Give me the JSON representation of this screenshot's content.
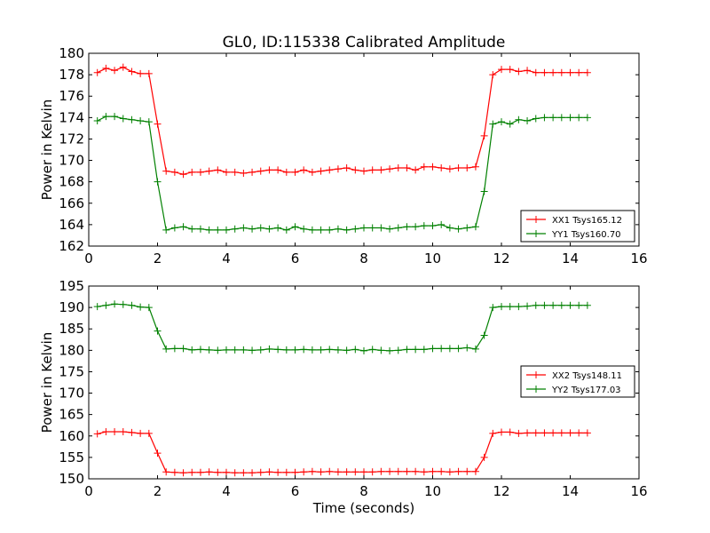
{
  "figure": {
    "title": "GL0, ID:115338 Calibrated Amplitude"
  },
  "chart_data": [
    {
      "type": "line",
      "title": "GL0, ID:115338 Calibrated Amplitude",
      "xlabel": "",
      "ylabel": "Power in Kelvin",
      "xlim": [
        0,
        16
      ],
      "ylim": [
        162,
        180
      ],
      "xticks": [
        0,
        2,
        4,
        6,
        8,
        10,
        12,
        14,
        16
      ],
      "yticks": [
        162,
        164,
        166,
        168,
        170,
        172,
        174,
        176,
        178,
        180
      ],
      "grid": false,
      "legend_position": "lower-right",
      "x": [
        0.25,
        0.5,
        0.75,
        1.0,
        1.25,
        1.5,
        1.75,
        2.0,
        2.25,
        2.5,
        2.75,
        3.0,
        3.25,
        3.5,
        3.75,
        4.0,
        4.25,
        4.5,
        4.75,
        5.0,
        5.25,
        5.5,
        5.75,
        6.0,
        6.25,
        6.5,
        6.75,
        7.0,
        7.25,
        7.5,
        7.75,
        8.0,
        8.25,
        8.5,
        8.75,
        9.0,
        9.25,
        9.5,
        9.75,
        10.0,
        10.25,
        10.5,
        10.75,
        11.0,
        11.25,
        11.5,
        11.75,
        12.0,
        12.25,
        12.5,
        12.75,
        13.0,
        13.25,
        13.5,
        13.75,
        14.0,
        14.25,
        14.5
      ],
      "series": [
        {
          "name": "XX1 Tsys165.12",
          "color": "#ff0000",
          "values": [
            178.2,
            178.6,
            178.4,
            178.7,
            178.3,
            178.1,
            178.1,
            173.4,
            169.0,
            168.9,
            168.7,
            168.9,
            168.9,
            169.0,
            169.1,
            168.9,
            168.9,
            168.8,
            168.9,
            169.0,
            169.1,
            169.1,
            168.9,
            168.9,
            169.1,
            168.9,
            169.0,
            169.1,
            169.2,
            169.3,
            169.1,
            169.0,
            169.1,
            169.1,
            169.2,
            169.3,
            169.3,
            169.1,
            169.4,
            169.4,
            169.3,
            169.2,
            169.3,
            169.3,
            169.4,
            172.3,
            178.0,
            178.5,
            178.5,
            178.3,
            178.4,
            178.2,
            178.2,
            178.2,
            178.2,
            178.2,
            178.2,
            178.2
          ]
        },
        {
          "name": "YY1 Tsys160.70",
          "color": "#008000",
          "values": [
            173.7,
            174.1,
            174.1,
            173.9,
            173.8,
            173.7,
            173.6,
            168.0,
            163.5,
            163.7,
            163.8,
            163.6,
            163.6,
            163.5,
            163.5,
            163.5,
            163.6,
            163.7,
            163.6,
            163.7,
            163.6,
            163.7,
            163.5,
            163.8,
            163.6,
            163.5,
            163.5,
            163.5,
            163.6,
            163.5,
            163.6,
            163.7,
            163.7,
            163.7,
            163.6,
            163.7,
            163.8,
            163.8,
            163.9,
            163.9,
            164.0,
            163.7,
            163.6,
            163.7,
            163.8,
            167.1,
            173.4,
            173.6,
            173.4,
            173.8,
            173.7,
            173.9,
            174.0,
            174.0,
            174.0,
            174.0,
            174.0,
            174.0
          ]
        }
      ]
    },
    {
      "type": "line",
      "title": "",
      "xlabel": "Time (seconds)",
      "ylabel": "Power in Kelvin",
      "xlim": [
        0,
        16
      ],
      "ylim": [
        150,
        195
      ],
      "xticks": [
        0,
        2,
        4,
        6,
        8,
        10,
        12,
        14,
        16
      ],
      "yticks": [
        150,
        155,
        160,
        165,
        170,
        175,
        180,
        185,
        190,
        195
      ],
      "grid": false,
      "legend_position": "right",
      "x": [
        0.25,
        0.5,
        0.75,
        1.0,
        1.25,
        1.5,
        1.75,
        2.0,
        2.25,
        2.5,
        2.75,
        3.0,
        3.25,
        3.5,
        3.75,
        4.0,
        4.25,
        4.5,
        4.75,
        5.0,
        5.25,
        5.5,
        5.75,
        6.0,
        6.25,
        6.5,
        6.75,
        7.0,
        7.25,
        7.5,
        7.75,
        8.0,
        8.25,
        8.5,
        8.75,
        9.0,
        9.25,
        9.5,
        9.75,
        10.0,
        10.25,
        10.5,
        10.75,
        11.0,
        11.25,
        11.5,
        11.75,
        12.0,
        12.25,
        12.5,
        12.75,
        13.0,
        13.25,
        13.5,
        13.75,
        14.0,
        14.25,
        14.5
      ],
      "series": [
        {
          "name": "XX2 Tsys148.11",
          "color": "#ff0000",
          "values": [
            160.5,
            161.0,
            161.0,
            161.0,
            160.8,
            160.6,
            160.6,
            156.0,
            151.6,
            151.5,
            151.4,
            151.5,
            151.5,
            151.6,
            151.5,
            151.5,
            151.4,
            151.4,
            151.4,
            151.5,
            151.6,
            151.5,
            151.5,
            151.5,
            151.6,
            151.7,
            151.6,
            151.7,
            151.6,
            151.6,
            151.6,
            151.6,
            151.6,
            151.7,
            151.7,
            151.7,
            151.7,
            151.7,
            151.6,
            151.7,
            151.7,
            151.6,
            151.7,
            151.7,
            151.7,
            155.0,
            160.6,
            160.9,
            160.9,
            160.6,
            160.7,
            160.7,
            160.7,
            160.7,
            160.7,
            160.7,
            160.7,
            160.7
          ]
        },
        {
          "name": "YY2 Tsys177.03",
          "color": "#008000",
          "values": [
            190.2,
            190.5,
            190.8,
            190.7,
            190.5,
            190.1,
            190.0,
            184.5,
            180.3,
            180.4,
            180.4,
            180.1,
            180.2,
            180.1,
            180.0,
            180.1,
            180.1,
            180.1,
            180.0,
            180.1,
            180.3,
            180.2,
            180.1,
            180.1,
            180.2,
            180.1,
            180.1,
            180.2,
            180.1,
            180.0,
            180.2,
            179.9,
            180.2,
            180.0,
            179.9,
            180.0,
            180.2,
            180.2,
            180.2,
            180.4,
            180.4,
            180.4,
            180.4,
            180.6,
            180.3,
            183.5,
            190.0,
            190.2,
            190.2,
            190.2,
            190.3,
            190.5,
            190.5,
            190.5,
            190.5,
            190.5,
            190.5,
            190.5
          ]
        }
      ]
    }
  ]
}
